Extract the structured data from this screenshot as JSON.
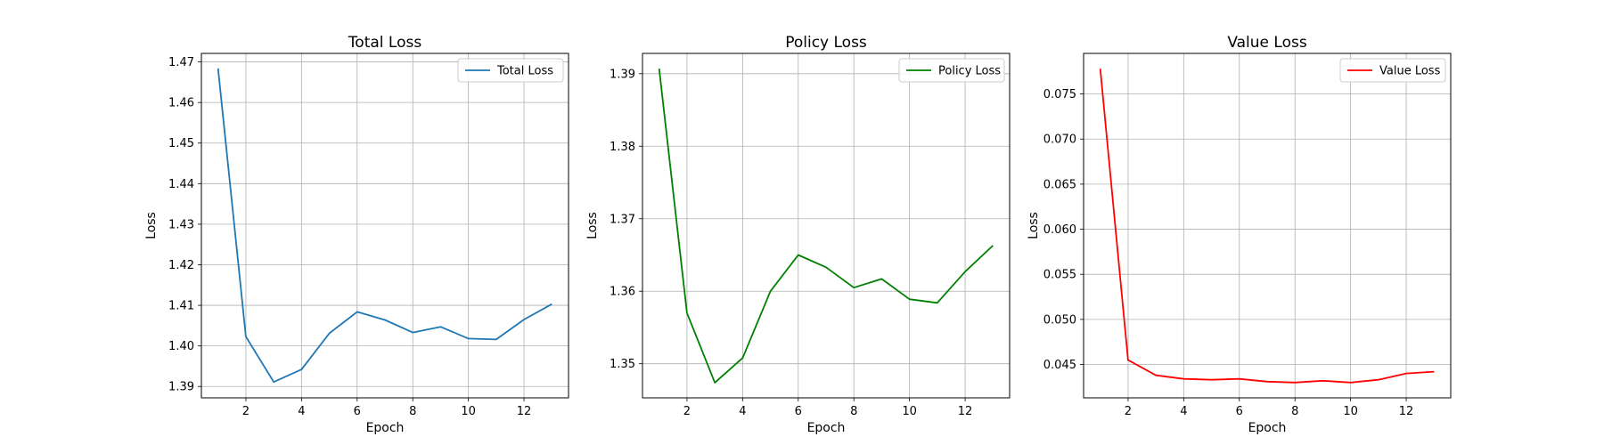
{
  "chart_data": [
    {
      "type": "line",
      "title": "Total Loss",
      "xlabel": "Epoch",
      "ylabel": "Loss",
      "xlim": [
        0.4,
        13.6
      ],
      "ylim": [
        1.3872,
        1.4721
      ],
      "xticks": [
        2,
        4,
        6,
        8,
        10,
        12
      ],
      "yticks": [
        1.39,
        1.4,
        1.41,
        1.42,
        1.43,
        1.44,
        1.45,
        1.46,
        1.47
      ],
      "ytick_decimals": 2,
      "grid": true,
      "legend": "upper right",
      "series": [
        {
          "name": "Total Loss",
          "color": "#1f77b4",
          "x": [
            1,
            2,
            3,
            4,
            5,
            6,
            7,
            8,
            9,
            10,
            11,
            12,
            13
          ],
          "y": [
            1.4684,
            1.4023,
            1.3911,
            1.3942,
            1.4031,
            1.4084,
            1.4064,
            1.4033,
            1.4047,
            1.4018,
            1.4016,
            1.4065,
            1.4103
          ]
        }
      ]
    },
    {
      "type": "line",
      "title": "Policy Loss",
      "xlabel": "Epoch",
      "ylabel": "Loss",
      "xlim": [
        0.4,
        13.6
      ],
      "ylim": [
        1.3453,
        1.3928
      ],
      "xticks": [
        2,
        4,
        6,
        8,
        10,
        12
      ],
      "yticks": [
        1.35,
        1.36,
        1.37,
        1.38,
        1.39
      ],
      "ytick_decimals": 2,
      "grid": true,
      "legend": "upper right",
      "series": [
        {
          "name": "Policy Loss",
          "color": "#008000",
          "x": [
            1,
            2,
            3,
            4,
            5,
            6,
            7,
            8,
            9,
            10,
            11,
            12,
            13
          ],
          "y": [
            1.3907,
            1.357,
            1.3474,
            1.3508,
            1.36,
            1.365,
            1.3633,
            1.3605,
            1.3617,
            1.3589,
            1.3584,
            1.3627,
            1.3663
          ]
        }
      ]
    },
    {
      "type": "line",
      "title": "Value Loss",
      "xlabel": "Epoch",
      "ylabel": "Loss",
      "xlim": [
        0.4,
        13.6
      ],
      "ylim": [
        0.0413,
        0.0795
      ],
      "xticks": [
        2,
        4,
        6,
        8,
        10,
        12
      ],
      "yticks": [
        0.045,
        0.05,
        0.055,
        0.06,
        0.065,
        0.07,
        0.075
      ],
      "ytick_decimals": 3,
      "grid": true,
      "legend": "upper right",
      "series": [
        {
          "name": "Value Loss",
          "color": "#ff0000",
          "x": [
            1,
            2,
            3,
            4,
            5,
            6,
            7,
            8,
            9,
            10,
            11,
            12,
            13
          ],
          "y": [
            0.0778,
            0.0455,
            0.0438,
            0.0434,
            0.0433,
            0.0434,
            0.0431,
            0.043,
            0.0432,
            0.043,
            0.0433,
            0.044,
            0.0442
          ]
        }
      ]
    }
  ]
}
